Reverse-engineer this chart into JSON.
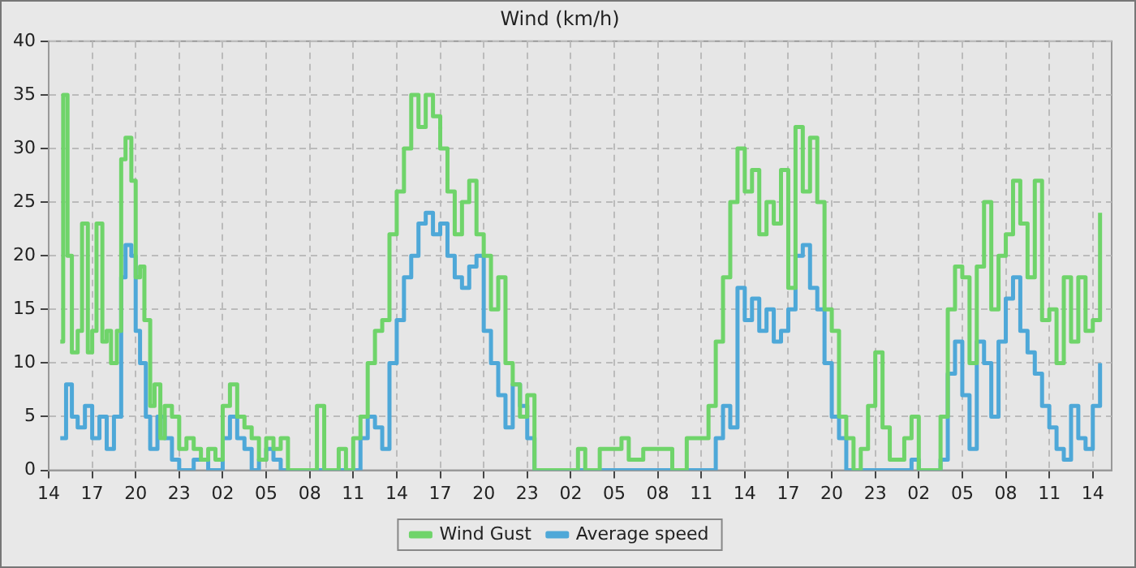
{
  "chart_data": {
    "type": "step",
    "title": "Wind (km/h)",
    "xlim": [
      "--01-01T14:00",
      "--01-04T15:18"
    ],
    "xticks": [
      {
        "value": "--01-01T14:00",
        "label": "14"
      },
      {
        "value": "--01-01T17:00",
        "label": "17"
      },
      {
        "value": "--01-01T20:00",
        "label": "20"
      },
      {
        "value": "--01-01T23:00",
        "label": "23"
      },
      {
        "value": "--01-02T02:00",
        "label": "02"
      },
      {
        "value": "--01-02T05:00",
        "label": "05"
      },
      {
        "value": "--01-02T08:00",
        "label": "08"
      },
      {
        "value": "--01-02T11:00",
        "label": "11"
      },
      {
        "value": "--01-02T14:00",
        "label": "14"
      },
      {
        "value": "--01-02T17:00",
        "label": "17"
      },
      {
        "value": "--01-02T20:00",
        "label": "20"
      },
      {
        "value": "--01-02T23:00",
        "label": "23"
      },
      {
        "value": "--01-03T02:00",
        "label": "02"
      },
      {
        "value": "--01-03T05:00",
        "label": "05"
      },
      {
        "value": "--01-03T08:00",
        "label": "08"
      },
      {
        "value": "--01-03T11:00",
        "label": "11"
      },
      {
        "value": "--01-03T14:00",
        "label": "14"
      },
      {
        "value": "--01-03T17:00",
        "label": "17"
      },
      {
        "value": "--01-03T20:00",
        "label": "20"
      },
      {
        "value": "--01-03T23:00",
        "label": "23"
      },
      {
        "value": "--01-04T02:00",
        "label": "02"
      },
      {
        "value": "--01-04T05:00",
        "label": "05"
      },
      {
        "value": "--01-04T08:00",
        "label": "08"
      },
      {
        "value": "--01-04T11:00",
        "label": "11"
      },
      {
        "value": "--01-04T14:00",
        "label": "14"
      }
    ],
    "ylim": [
      0,
      40
    ],
    "yticks": [
      0,
      5,
      10,
      15,
      20,
      25,
      30,
      35,
      40
    ],
    "grid": true,
    "legend": "bottom",
    "marker": "none",
    "line_style": "solid",
    "series": [
      {
        "name": "Wind Gust",
        "color": "#6fd46a",
        "x": [
          "--01-01T14:48",
          "--01-01T15:00",
          "--01-01T15:18",
          "--01-01T15:36",
          "--01-01T16:00",
          "--01-01T16:18",
          "--01-01T16:42",
          "--01-01T17:00",
          "--01-01T17:18",
          "--01-01T17:42",
          "--01-01T18:00",
          "--01-01T18:18",
          "--01-01T18:42",
          "--01-01T19:00",
          "--01-01T19:18",
          "--01-01T19:42",
          "--01-01T20:00",
          "--01-01T20:18",
          "--01-01T20:36",
          "--01-01T21:00",
          "--01-01T21:18",
          "--01-01T21:42",
          "--01-01T22:00",
          "--01-01T22:30",
          "--01-01T23:00",
          "--01-01T23:30",
          "--01-02T00:00",
          "--01-02T00:30",
          "--01-02T01:00",
          "--01-02T01:30",
          "--01-02T02:00",
          "--01-02T02:30",
          "--01-02T03:00",
          "--01-02T03:30",
          "--01-02T04:00",
          "--01-02T04:30",
          "--01-02T05:00",
          "--01-02T05:30",
          "--01-02T06:00",
          "--01-02T06:30",
          "--01-02T08:00",
          "--01-02T08:30",
          "--01-02T09:00",
          "--01-02T10:00",
          "--01-02T10:30",
          "--01-02T11:00",
          "--01-02T11:30",
          "--01-02T12:00",
          "--01-02T12:30",
          "--01-02T13:00",
          "--01-02T13:30",
          "--01-02T14:00",
          "--01-02T14:30",
          "--01-02T15:00",
          "--01-02T15:30",
          "--01-02T16:00",
          "--01-02T16:30",
          "--01-02T17:00",
          "--01-02T17:30",
          "--01-02T18:00",
          "--01-02T18:30",
          "--01-02T19:00",
          "--01-02T19:30",
          "--01-02T20:00",
          "--01-02T20:30",
          "--01-02T21:00",
          "--01-02T21:30",
          "--01-02T22:00",
          "--01-02T22:30",
          "--01-02T23:00",
          "--01-02T23:30",
          "--01-03T02:30",
          "--01-03T03:00",
          "--01-03T04:00",
          "--01-03T05:00",
          "--01-03T05:30",
          "--01-03T06:00",
          "--01-03T07:00",
          "--01-03T08:30",
          "--01-03T09:00",
          "--01-03T10:00",
          "--01-03T11:00",
          "--01-03T11:30",
          "--01-03T12:00",
          "--01-03T12:30",
          "--01-03T13:00",
          "--01-03T13:30",
          "--01-03T14:00",
          "--01-03T14:30",
          "--01-03T15:00",
          "--01-03T15:30",
          "--01-03T16:00",
          "--01-03T16:30",
          "--01-03T17:00",
          "--01-03T17:30",
          "--01-03T18:00",
          "--01-03T18:30",
          "--01-03T19:00",
          "--01-03T19:30",
          "--01-03T20:00",
          "--01-03T20:30",
          "--01-03T21:00",
          "--01-03T21:30",
          "--01-03T22:00",
          "--01-03T22:30",
          "--01-03T23:00",
          "--01-03T23:30",
          "--01-04T00:00",
          "--01-04T01:00",
          "--01-04T01:30",
          "--01-04T02:00",
          "--01-04T03:30",
          "--01-04T04:00",
          "--01-04T04:30",
          "--01-04T05:00",
          "--01-04T05:30",
          "--01-04T06:00",
          "--01-04T06:30",
          "--01-04T07:00",
          "--01-04T07:30",
          "--01-04T08:00",
          "--01-04T08:30",
          "--01-04T09:00",
          "--01-04T09:30",
          "--01-04T10:00",
          "--01-04T10:30",
          "--01-04T11:00",
          "--01-04T11:30",
          "--01-04T12:00",
          "--01-04T12:30",
          "--01-04T13:00",
          "--01-04T13:30",
          "--01-04T14:00",
          "--01-04T14:30"
        ],
        "values": [
          12,
          35,
          20,
          11,
          13,
          23,
          11,
          13,
          23,
          12,
          13,
          10,
          13,
          29,
          31,
          27,
          18,
          19,
          14,
          6,
          8,
          3,
          6,
          5,
          2,
          3,
          2,
          1,
          2,
          1,
          6,
          8,
          5,
          4,
          3,
          1,
          3,
          2,
          3,
          0,
          0,
          6,
          0,
          2,
          0,
          3,
          5,
          10,
          13,
          14,
          22,
          26,
          30,
          35,
          32,
          35,
          33,
          30,
          26,
          22,
          25,
          27,
          22,
          20,
          15,
          18,
          10,
          8,
          5,
          7,
          0,
          2,
          0,
          2,
          2,
          3,
          1,
          2,
          2,
          0,
          3,
          3,
          6,
          12,
          18,
          25,
          30,
          26,
          28,
          22,
          25,
          23,
          28,
          17,
          32,
          26,
          31,
          25,
          15,
          13,
          5,
          3,
          0,
          2,
          6,
          11,
          4,
          1,
          3,
          5,
          0,
          5,
          15,
          19,
          18,
          10,
          19,
          25,
          15,
          20,
          22,
          27,
          23,
          18,
          27,
          14,
          15,
          10,
          18,
          12,
          18,
          13,
          14,
          24
        ]
      },
      {
        "name": "Average speed",
        "color": "#4ea8d8",
        "x": [
          "--01-01T14:48",
          "--01-01T15:12",
          "--01-01T15:36",
          "--01-01T16:00",
          "--01-01T16:30",
          "--01-01T17:00",
          "--01-01T17:30",
          "--01-01T18:00",
          "--01-01T18:30",
          "--01-01T19:00",
          "--01-01T19:18",
          "--01-01T19:42",
          "--01-01T20:00",
          "--01-01T20:18",
          "--01-01T20:42",
          "--01-01T21:00",
          "--01-01T21:30",
          "--01-01T22:00",
          "--01-01T22:30",
          "--01-01T23:00",
          "--01-02T00:00",
          "--01-02T01:00",
          "--01-02T02:00",
          "--01-02T02:30",
          "--01-02T03:00",
          "--01-02T03:30",
          "--01-02T04:00",
          "--01-02T04:30",
          "--01-02T05:00",
          "--01-02T05:30",
          "--01-02T06:00",
          "--01-02T11:00",
          "--01-02T11:30",
          "--01-02T12:00",
          "--01-02T12:30",
          "--01-02T13:00",
          "--01-02T13:30",
          "--01-02T14:00",
          "--01-02T14:30",
          "--01-02T15:00",
          "--01-02T15:30",
          "--01-02T16:00",
          "--01-02T16:30",
          "--01-02T17:00",
          "--01-02T17:30",
          "--01-02T18:00",
          "--01-02T18:30",
          "--01-02T19:00",
          "--01-02T19:30",
          "--01-02T20:00",
          "--01-02T20:30",
          "--01-02T21:00",
          "--01-02T21:30",
          "--01-02T22:00",
          "--01-02T22:30",
          "--01-02T23:00",
          "--01-02T23:30",
          "--01-03T11:30",
          "--01-03T12:00",
          "--01-03T12:30",
          "--01-03T13:00",
          "--01-03T13:30",
          "--01-03T14:00",
          "--01-03T14:30",
          "--01-03T15:00",
          "--01-03T15:30",
          "--01-03T16:00",
          "--01-03T16:30",
          "--01-03T17:00",
          "--01-03T17:30",
          "--01-03T18:00",
          "--01-03T18:30",
          "--01-03T19:00",
          "--01-03T19:30",
          "--01-03T20:00",
          "--01-03T20:30",
          "--01-03T21:00",
          "--01-04T01:00",
          "--01-04T01:30",
          "--01-04T02:00",
          "--01-04T03:30",
          "--01-04T04:00",
          "--01-04T04:30",
          "--01-04T05:00",
          "--01-04T05:30",
          "--01-04T06:00",
          "--01-04T06:30",
          "--01-04T07:00",
          "--01-04T07:30",
          "--01-04T08:00",
          "--01-04T08:30",
          "--01-04T09:00",
          "--01-04T09:30",
          "--01-04T10:00",
          "--01-04T10:30",
          "--01-04T11:00",
          "--01-04T11:30",
          "--01-04T12:00",
          "--01-04T12:30",
          "--01-04T13:00",
          "--01-04T13:30",
          "--01-04T14:00",
          "--01-04T14:30"
        ],
        "values": [
          3,
          8,
          5,
          4,
          6,
          3,
          5,
          2,
          5,
          18,
          21,
          20,
          13,
          10,
          5,
          2,
          5,
          3,
          1,
          0,
          1,
          0,
          3,
          5,
          3,
          2,
          0,
          1,
          2,
          1,
          0,
          0,
          3,
          5,
          4,
          2,
          10,
          14,
          18,
          20,
          23,
          24,
          22,
          23,
          20,
          18,
          17,
          19,
          20,
          13,
          10,
          7,
          4,
          8,
          6,
          3,
          0,
          0,
          3,
          6,
          4,
          17,
          14,
          16,
          13,
          15,
          12,
          13,
          15,
          20,
          21,
          17,
          15,
          10,
          5,
          3,
          0,
          0,
          1,
          0,
          1,
          9,
          12,
          7,
          2,
          12,
          10,
          5,
          12,
          16,
          18,
          13,
          11,
          9,
          6,
          4,
          2,
          1,
          6,
          3,
          2,
          6,
          10
        ]
      }
    ]
  }
}
